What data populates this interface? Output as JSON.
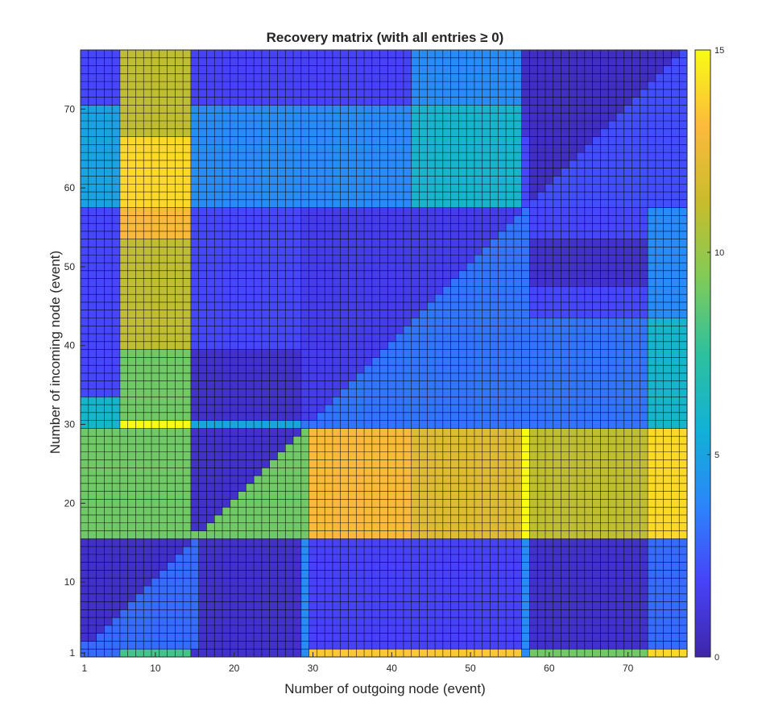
{
  "chart_data": {
    "type": "heatmap",
    "title": "Recovery matrix (with all entries ≥ 0)",
    "xlabel": "Number of outgoing node (event)",
    "ylabel": "Number of incoming node (event)",
    "x_range": [
      1,
      77
    ],
    "y_range": [
      1,
      77
    ],
    "x_ticks": [
      "1",
      "10",
      "20",
      "30",
      "40",
      "50",
      "60",
      "70"
    ],
    "x_tick_values": [
      1,
      10,
      20,
      30,
      40,
      50,
      60,
      70
    ],
    "y_ticks": [
      "1",
      "10",
      "20",
      "30",
      "40",
      "50",
      "60",
      "70"
    ],
    "y_tick_values": [
      1,
      10,
      20,
      30,
      40,
      50,
      60,
      70
    ],
    "colorbar": {
      "range": [
        0,
        15
      ],
      "ticks": [
        "0",
        "5",
        "10",
        "15"
      ],
      "tick_values": [
        0,
        5,
        10,
        15
      ]
    },
    "colormap": [
      "#3e26a8",
      "#4743f8",
      "#2c85fb",
      "#12b1d6",
      "#2ec09e",
      "#80cb58",
      "#c9bc2c",
      "#fcba3d",
      "#f9fb15"
    ],
    "x_blocks": [
      {
        "from": 1,
        "to": 5
      },
      {
        "from": 6,
        "to": 14
      },
      {
        "from": 15,
        "to": 28
      },
      {
        "from": 29,
        "to": 29
      },
      {
        "from": 30,
        "to": 42
      },
      {
        "from": 43,
        "to": 56
      },
      {
        "from": 57,
        "to": 57
      },
      {
        "from": 58,
        "to": 72
      },
      {
        "from": 73,
        "to": 77
      }
    ],
    "y_blocks": [
      {
        "from": 1,
        "to": 1
      },
      {
        "from": 2,
        "to": 15
      },
      {
        "from": 16,
        "to": 29
      },
      {
        "from": 30,
        "to": 30
      },
      {
        "from": 31,
        "to": 33
      },
      {
        "from": 34,
        "to": 39
      },
      {
        "from": 40,
        "to": 43
      },
      {
        "from": 44,
        "to": 47
      },
      {
        "from": 48,
        "to": 53
      },
      {
        "from": 54,
        "to": 57
      },
      {
        "from": 58,
        "to": 66
      },
      {
        "from": 67,
        "to": 70
      },
      {
        "from": 71,
        "to": 77
      }
    ],
    "block_values": [
      [
        3.0,
        8.0,
        0.8,
        4.0,
        13.5,
        13.5,
        4.0,
        9.0,
        14.0
      ],
      [
        1.0,
        8.0,
        0.8,
        4.0,
        1.8,
        1.8,
        4.0,
        0.8,
        3.0
      ],
      [
        9.0,
        9.0,
        0.8,
        0.8,
        13.0,
        12.0,
        15.0,
        11.0,
        14.0
      ],
      [
        6.0,
        15.0,
        5.0,
        5.0,
        3.3,
        3.3,
        3.3,
        3.3,
        6.0
      ],
      [
        6.0,
        9.0,
        0.8,
        3.5,
        3.3,
        3.3,
        3.3,
        3.3,
        6.0
      ],
      [
        2.0,
        9.0,
        0.8,
        3.5,
        3.3,
        3.3,
        3.3,
        3.3,
        6.0
      ],
      [
        2.0,
        11.0,
        2.0,
        1.8,
        3.3,
        3.3,
        3.3,
        3.3,
        6.0
      ],
      [
        2.0,
        11.0,
        2.0,
        1.8,
        3.3,
        3.3,
        2.0,
        2.0,
        4.0
      ],
      [
        2.0,
        11.0,
        2.0,
        1.8,
        2.0,
        2.0,
        0.8,
        0.8,
        4.0
      ],
      [
        2.0,
        13.0,
        2.0,
        1.8,
        2.0,
        2.0,
        2.0,
        2.0,
        4.0
      ],
      [
        5.0,
        14.0,
        4.0,
        4.0,
        4.0,
        6.0,
        2.0,
        2.0,
        2.5
      ],
      [
        5.0,
        11.0,
        4.0,
        4.0,
        4.0,
        6.0,
        1.0,
        1.0,
        2.5
      ],
      [
        2.0,
        11.0,
        1.8,
        1.8,
        1.8,
        4.0,
        0.6,
        0.6,
        2.5
      ]
    ],
    "triangles": [
      {
        "rows": [
          2,
          15
        ],
        "cols": [
          1,
          15
        ],
        "above_diagonal": 0.7,
        "below_diagonal": 3.0,
        "note": ""
      },
      {
        "rows": [
          16,
          29
        ],
        "cols": [
          15,
          29
        ],
        "above_diagonal": 0.8,
        "below_diagonal": 9.0,
        "note": ""
      },
      {
        "rows": [
          30,
          57
        ],
        "cols": [
          29,
          57
        ],
        "above_diagonal": 1.5,
        "below_diagonal": 3.3,
        "note": ""
      },
      {
        "rows": [
          58,
          77
        ],
        "cols": [
          58,
          77
        ],
        "above_diagonal": 0.6,
        "below_diagonal": 2.2,
        "note": ""
      }
    ],
    "grid": true,
    "legend": "colorbar-right"
  }
}
